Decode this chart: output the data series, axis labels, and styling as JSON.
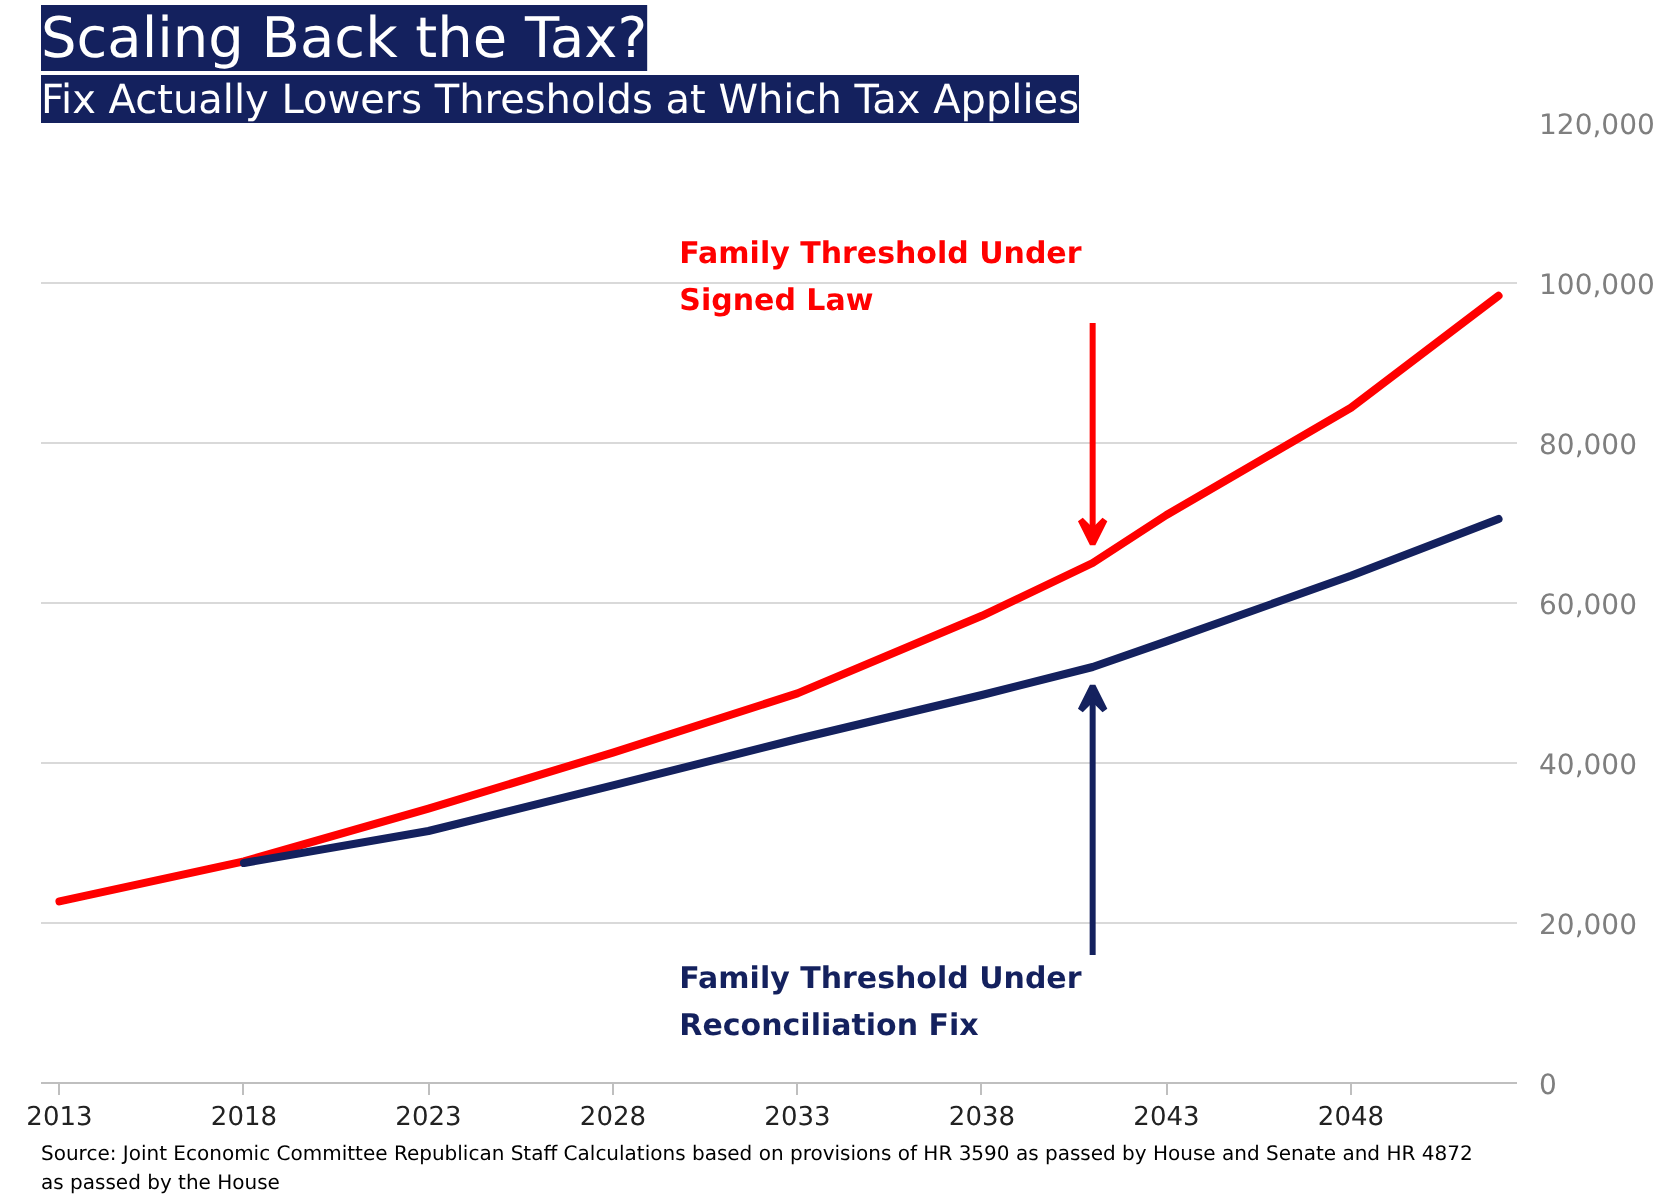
{
  "chart_data": {
    "type": "line",
    "title": "Scaling Back the Tax?",
    "subtitle": "Fix Actually Lowers Thresholds at Which Tax Applies",
    "xlim": [
      2012.5,
      2052.5
    ],
    "xticks": [
      2013,
      2018,
      2023,
      2028,
      2033,
      2038,
      2043,
      2048
    ],
    "ylim": [
      0,
      120000
    ],
    "yticks": [
      {
        "value": 0,
        "label": "0"
      },
      {
        "value": 20000,
        "label": "20,000"
      },
      {
        "value": 40000,
        "label": "40,000"
      },
      {
        "value": 60000,
        "label": "60,000"
      },
      {
        "value": 80000,
        "label": "80,000"
      },
      {
        "value": 100000,
        "label": "100,000"
      },
      {
        "value": 120000,
        "label": "120,000"
      }
    ],
    "grid": "y",
    "legend": false,
    "marker": "none",
    "line_style": "solid",
    "series": [
      {
        "name": "Family Threshold Under Signed Law",
        "color": "#ff0000",
        "x": [
          2013,
          2018,
          2023,
          2028,
          2033,
          2038,
          2041,
          2043,
          2048,
          2052
        ],
        "values": [
          22700,
          27700,
          34300,
          41300,
          48700,
          58400,
          65000,
          71000,
          84400,
          98400
        ]
      },
      {
        "name": "Family Threshold Under Reconciliation Fix",
        "color": "#14215e",
        "x": [
          2018,
          2023,
          2028,
          2033,
          2038,
          2041,
          2043,
          2048,
          2052
        ],
        "values": [
          27500,
          31500,
          37200,
          43000,
          48500,
          52000,
          55200,
          63400,
          70500
        ]
      }
    ],
    "annotations": [
      "Source: Joint Economic Committee Republican Staff Calculations based on provisions of HR 3590 as passed by House and Senate and HR 4872 as passed by the House"
    ]
  }
}
